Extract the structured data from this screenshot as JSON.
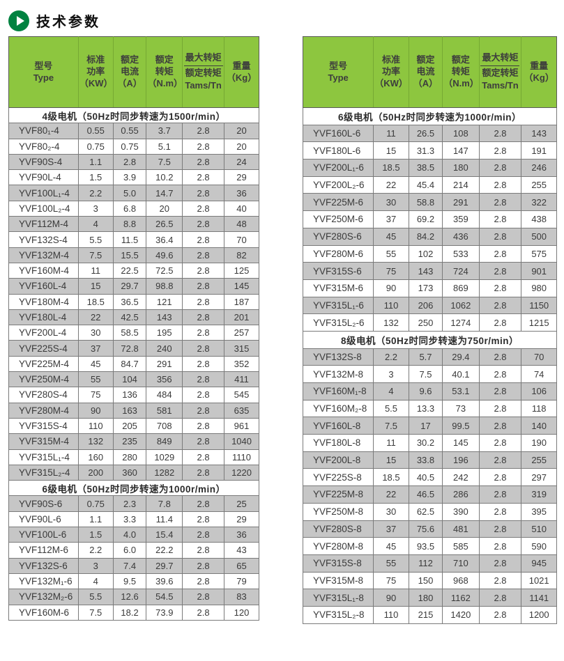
{
  "page_title": "技术参数",
  "colors": {
    "header_green": "#8dc63f",
    "header_sep": "#76a933",
    "icon_green": "#008240",
    "row_gray": "#c6c6c6",
    "border_gray": "#7a7a7a",
    "outer_border": "#5a5a5a",
    "text_dark": "#3a3a3a",
    "section_text": "#2b2b2b"
  },
  "icons": {
    "title_icon": "play-icon"
  },
  "columns": {
    "type_line1": "型号",
    "type_line2": "Type",
    "power_line1": "标准",
    "power_line2": "功率",
    "power_line3": "（KW）",
    "current_line1": "额定",
    "current_line2": "电流",
    "current_line3": "（A）",
    "torque_line1": "额定",
    "torque_line2": "转矩",
    "torque_line3": "（N.m）",
    "ratio_numerator": "最大转矩",
    "ratio_denominator": "额定转矩",
    "ratio_unit": "Tams/Tn",
    "weight_line1": "重量",
    "weight_line2": "（Kg）"
  },
  "tables": [
    {
      "id": "left",
      "sections": [
        {
          "title": "4级电机（50Hz时同步转速为1500r/min）",
          "rows": [
            [
              "YVF80₁-4",
              "0.55",
              "0.55",
              "3.7",
              "2.8",
              "20"
            ],
            [
              "YVF80₂-4",
              "0.75",
              "0.75",
              "5.1",
              "2.8",
              "20"
            ],
            [
              "YVF90S-4",
              "1.1",
              "2.8",
              "7.5",
              "2.8",
              "24"
            ],
            [
              "YVF90L-4",
              "1.5",
              "3.9",
              "10.2",
              "2.8",
              "29"
            ],
            [
              "YVF100L₁-4",
              "2.2",
              "5.0",
              "14.7",
              "2.8",
              "36"
            ],
            [
              "YVF100L₂-4",
              "3",
              "6.8",
              "20",
              "2.8",
              "40"
            ],
            [
              "YVF112M-4",
              "4",
              "8.8",
              "26.5",
              "2.8",
              "48"
            ],
            [
              "YVF132S-4",
              "5.5",
              "11.5",
              "36.4",
              "2.8",
              "70"
            ],
            [
              "YVF132M-4",
              "7.5",
              "15.5",
              "49.6",
              "2.8",
              "82"
            ],
            [
              "YVF160M-4",
              "11",
              "22.5",
              "72.5",
              "2.8",
              "125"
            ],
            [
              "YVF160L-4",
              "15",
              "29.7",
              "98.8",
              "2.8",
              "145"
            ],
            [
              "YVF180M-4",
              "18.5",
              "36.5",
              "121",
              "2.8",
              "187"
            ],
            [
              "YVF180L-4",
              "22",
              "42.5",
              "143",
              "2.8",
              "201"
            ],
            [
              "YVF200L-4",
              "30",
              "58.5",
              "195",
              "2.8",
              "257"
            ],
            [
              "YVF225S-4",
              "37",
              "72.8",
              "240",
              "2.8",
              "315"
            ],
            [
              "YVF225M-4",
              "45",
              "84.7",
              "291",
              "2.8",
              "352"
            ],
            [
              "YVF250M-4",
              "55",
              "104",
              "356",
              "2.8",
              "411"
            ],
            [
              "YVF280S-4",
              "75",
              "136",
              "484",
              "2.8",
              "545"
            ],
            [
              "YVF280M-4",
              "90",
              "163",
              "581",
              "2.8",
              "635"
            ],
            [
              "YVF315S-4",
              "110",
              "205",
              "708",
              "2.8",
              "961"
            ],
            [
              "YVF315M-4",
              "132",
              "235",
              "849",
              "2.8",
              "1040"
            ],
            [
              "YVF315L₁-4",
              "160",
              "280",
              "1029",
              "2.8",
              "1110"
            ],
            [
              "YVF315L₂-4",
              "200",
              "360",
              "1282",
              "2.8",
              "1220"
            ]
          ]
        },
        {
          "title": "6级电机（50Hz时同步转速为1000r/min）",
          "rows": [
            [
              "YVF90S-6",
              "0.75",
              "2.3",
              "7.8",
              "2.8",
              "25"
            ],
            [
              "YVF90L-6",
              "1.1",
              "3.3",
              "11.4",
              "2.8",
              "29"
            ],
            [
              "YVF100L-6",
              "1.5",
              "4.0",
              "15.4",
              "2.8",
              "36"
            ],
            [
              "YVF112M-6",
              "2.2",
              "6.0",
              "22.2",
              "2.8",
              "43"
            ],
            [
              "YVF132S-6",
              "3",
              "7.4",
              "29.7",
              "2.8",
              "65"
            ],
            [
              "YVF132M₁-6",
              "4",
              "9.5",
              "39.6",
              "2.8",
              "79"
            ],
            [
              "YVF132M₂-6",
              "5.5",
              "12.6",
              "54.5",
              "2.8",
              "83"
            ],
            [
              "YVF160M-6",
              "7.5",
              "18.2",
              "73.9",
              "2.8",
              "120"
            ]
          ]
        }
      ]
    },
    {
      "id": "right",
      "sections": [
        {
          "title": "6级电机（50Hz时同步转速为1000r/min）",
          "rows": [
            [
              "YVF160L-6",
              "11",
              "26.5",
              "108",
              "2.8",
              "143"
            ],
            [
              "YVF180L-6",
              "15",
              "31.3",
              "147",
              "2.8",
              "191"
            ],
            [
              "YVF200L₁-6",
              "18.5",
              "38.5",
              "180",
              "2.8",
              "246"
            ],
            [
              "YVF200L₂-6",
              "22",
              "45.4",
              "214",
              "2.8",
              "255"
            ],
            [
              "YVF225M-6",
              "30",
              "58.8",
              "291",
              "2.8",
              "322"
            ],
            [
              "YVF250M-6",
              "37",
              "69.2",
              "359",
              "2.8",
              "438"
            ],
            [
              "YVF280S-6",
              "45",
              "84.2",
              "436",
              "2.8",
              "500"
            ],
            [
              "YVF280M-6",
              "55",
              "102",
              "533",
              "2.8",
              "575"
            ],
            [
              "YVF315S-6",
              "75",
              "143",
              "724",
              "2.8",
              "901"
            ],
            [
              "YVF315M-6",
              "90",
              "173",
              "869",
              "2.8",
              "980"
            ],
            [
              "YVF315L₁-6",
              "110",
              "206",
              "1062",
              "2.8",
              "1150"
            ],
            [
              "YVF315L₂-6",
              "132",
              "250",
              "1274",
              "2.8",
              "1215"
            ]
          ]
        },
        {
          "title": "8级电机（50Hz时同步转速为750r/min）",
          "rows": [
            [
              "YVF132S-8",
              "2.2",
              "5.7",
              "29.4",
              "2.8",
              "70"
            ],
            [
              "YVF132M-8",
              "3",
              "7.5",
              "40.1",
              "2.8",
              "74"
            ],
            [
              "YVF160M₁-8",
              "4",
              "9.6",
              "53.1",
              "2.8",
              "106"
            ],
            [
              "YVF160M₂-8",
              "5.5",
              "13.3",
              "73",
              "2.8",
              "118"
            ],
            [
              "YVF160L-8",
              "7.5",
              "17",
              "99.5",
              "2.8",
              "140"
            ],
            [
              "YVF180L-8",
              "11",
              "30.2",
              "145",
              "2.8",
              "190"
            ],
            [
              "YVF200L-8",
              "15",
              "33.8",
              "196",
              "2.8",
              "255"
            ],
            [
              "YVF225S-8",
              "18.5",
              "40.5",
              "242",
              "2.8",
              "297"
            ],
            [
              "YVF225M-8",
              "22",
              "46.5",
              "286",
              "2.8",
              "319"
            ],
            [
              "YVF250M-8",
              "30",
              "62.5",
              "390",
              "2.8",
              "395"
            ],
            [
              "YVF280S-8",
              "37",
              "75.6",
              "481",
              "2.8",
              "510"
            ],
            [
              "YVF280M-8",
              "45",
              "93.5",
              "585",
              "2.8",
              "590"
            ],
            [
              "YVF315S-8",
              "55",
              "112",
              "710",
              "2.8",
              "945"
            ],
            [
              "YVF315M-8",
              "75",
              "150",
              "968",
              "2.8",
              "1021"
            ],
            [
              "YVF315L₁-8",
              "90",
              "180",
              "1162",
              "2.8",
              "1141"
            ],
            [
              "YVF315L₂-8",
              "110",
              "215",
              "1420",
              "2.8",
              "1200"
            ]
          ]
        }
      ]
    }
  ]
}
